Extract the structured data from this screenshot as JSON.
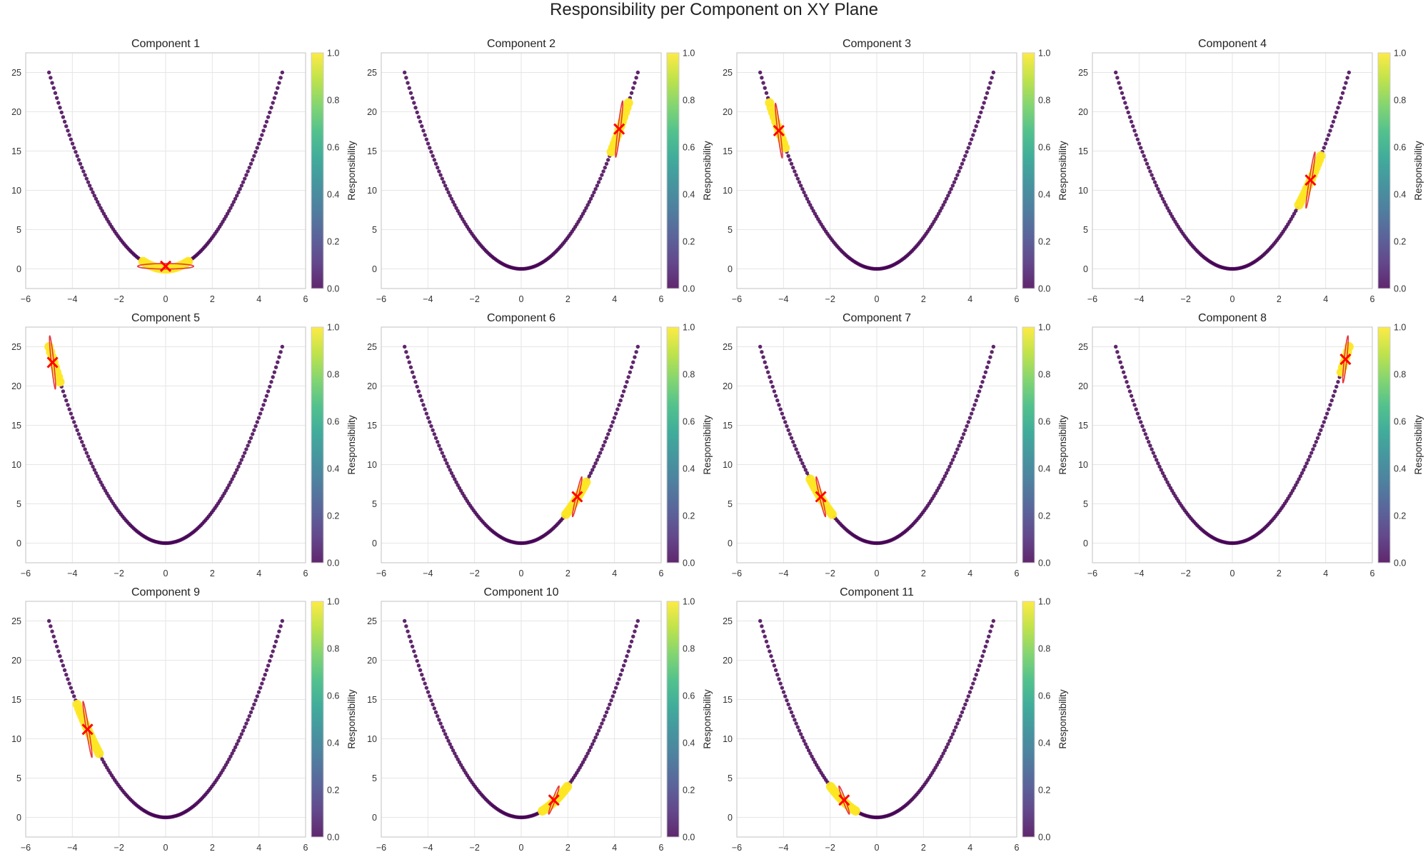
{
  "figure": {
    "title": "Responsibility per Component on XY Plane"
  },
  "colorbar": {
    "label": "Responsibility",
    "ticks": [
      "0.0",
      "0.2",
      "0.4",
      "0.6",
      "0.8",
      "1.0"
    ],
    "colormap": [
      "#440154",
      "#482878",
      "#3e4989",
      "#31688e",
      "#26828e",
      "#1f9e89",
      "#35b779",
      "#6ece58",
      "#b5de2b",
      "#fde725"
    ]
  },
  "colors": {
    "mean_marker": "#ff0000",
    "ellipse": "#e8363a",
    "low": "#440154",
    "high": "#fde725",
    "grid": "#e6e6e6"
  },
  "chart_data": {
    "type": "scatter",
    "curve": "y = x^2",
    "points_x_range": [
      -5,
      5
    ],
    "num_points": 150,
    "xlim": [
      -6,
      6
    ],
    "ylim": [
      -2.5,
      27.5
    ],
    "xticks": [
      "−6",
      "−4",
      "−2",
      "0",
      "2",
      "4",
      "6"
    ],
    "yticks": [
      "0",
      "5",
      "10",
      "15",
      "20",
      "25"
    ],
    "grid": true,
    "components": [
      {
        "title": "Component 1",
        "mean": [
          0.0,
          0.33
        ],
        "range": [
          -1.0,
          1.0
        ],
        "sigma_major": 1.2,
        "sigma_minor": 0.35,
        "angle": 0
      },
      {
        "title": "Component 2",
        "mean": [
          4.2,
          17.8
        ],
        "range": [
          3.85,
          4.65
        ],
        "sigma_major": 3.6,
        "sigma_minor": 0.16,
        "angle": 83
      },
      {
        "title": "Component 3",
        "mean": [
          -4.2,
          17.6
        ],
        "range": [
          -4.6,
          -3.9
        ],
        "sigma_major": 3.5,
        "sigma_minor": 0.16,
        "angle": -83
      },
      {
        "title": "Component 4",
        "mean": [
          3.35,
          11.3
        ],
        "range": [
          2.8,
          3.85
        ],
        "sigma_major": 3.6,
        "sigma_minor": 0.16,
        "angle": 81
      },
      {
        "title": "Component 5",
        "mean": [
          -4.85,
          23.0
        ],
        "range": [
          -5.0,
          -4.5
        ],
        "sigma_major": 3.4,
        "sigma_minor": 0.16,
        "angle": -84
      },
      {
        "title": "Component 6",
        "mean": [
          2.4,
          5.9
        ],
        "range": [
          1.9,
          2.85
        ],
        "sigma_major": 2.6,
        "sigma_minor": 0.16,
        "angle": 77
      },
      {
        "title": "Component 7",
        "mean": [
          -2.4,
          5.9
        ],
        "range": [
          -2.9,
          -1.85
        ],
        "sigma_major": 2.6,
        "sigma_minor": 0.16,
        "angle": -77
      },
      {
        "title": "Component 8",
        "mean": [
          4.85,
          23.4
        ],
        "range": [
          4.6,
          5.0
        ],
        "sigma_major": 3.0,
        "sigma_minor": 0.16,
        "angle": 84
      },
      {
        "title": "Component 9",
        "mean": [
          -3.35,
          11.2
        ],
        "range": [
          -3.85,
          -2.8
        ],
        "sigma_major": 3.6,
        "sigma_minor": 0.16,
        "angle": -81
      },
      {
        "title": "Component 10",
        "mean": [
          1.4,
          2.2
        ],
        "range": [
          0.85,
          2.0
        ],
        "sigma_major": 1.9,
        "sigma_minor": 0.16,
        "angle": 70
      },
      {
        "title": "Component 11",
        "mean": [
          -1.4,
          2.2
        ],
        "range": [
          -2.0,
          -0.85
        ],
        "sigma_major": 1.9,
        "sigma_minor": 0.16,
        "angle": -70
      }
    ]
  }
}
